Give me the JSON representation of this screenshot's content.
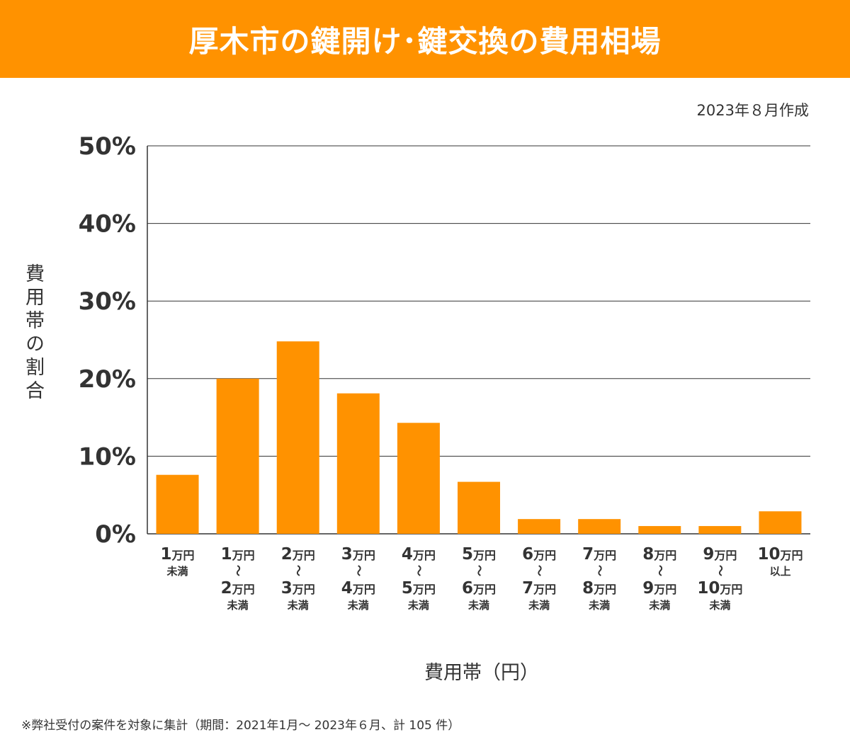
{
  "header": {
    "title": "厚木市の鍵開け･鍵交換の費用相場"
  },
  "created": "2023年８月作成",
  "footnote": "※弊社受付の案件を対象に集計（期間：2021年1月～ 2023年６月、計 105 件）",
  "colors": {
    "header": "#ff9200",
    "bar": "#ff9200",
    "grid": "#333333"
  },
  "chart_data": {
    "type": "bar",
    "title": "厚木市の鍵開け･鍵交換の費用相場",
    "xlabel": "費用帯（円）",
    "ylabel": "費用帯の割合",
    "ylim": [
      0,
      50
    ],
    "yticks": [
      "0%",
      "10%",
      "20%",
      "30%",
      "40%",
      "50%"
    ],
    "grid": true,
    "categories": [
      [
        "1万円",
        "未満"
      ],
      [
        "1万円",
        "～",
        "2万円",
        "未満"
      ],
      [
        "2万円",
        "～",
        "3万円",
        "未満"
      ],
      [
        "3万円",
        "～",
        "4万円",
        "未満"
      ],
      [
        "4万円",
        "～",
        "5万円",
        "未満"
      ],
      [
        "5万円",
        "～",
        "6万円",
        "未満"
      ],
      [
        "6万円",
        "～",
        "7万円",
        "未満"
      ],
      [
        "7万円",
        "～",
        "8万円",
        "未満"
      ],
      [
        "8万円",
        "～",
        "9万円",
        "未満"
      ],
      [
        "9万円",
        "～",
        "10万円",
        "未満"
      ],
      [
        "10万円",
        "以上"
      ]
    ],
    "values": [
      7.6,
      20.0,
      24.8,
      18.1,
      14.3,
      6.7,
      1.9,
      1.9,
      1.0,
      1.0,
      2.9
    ]
  }
}
